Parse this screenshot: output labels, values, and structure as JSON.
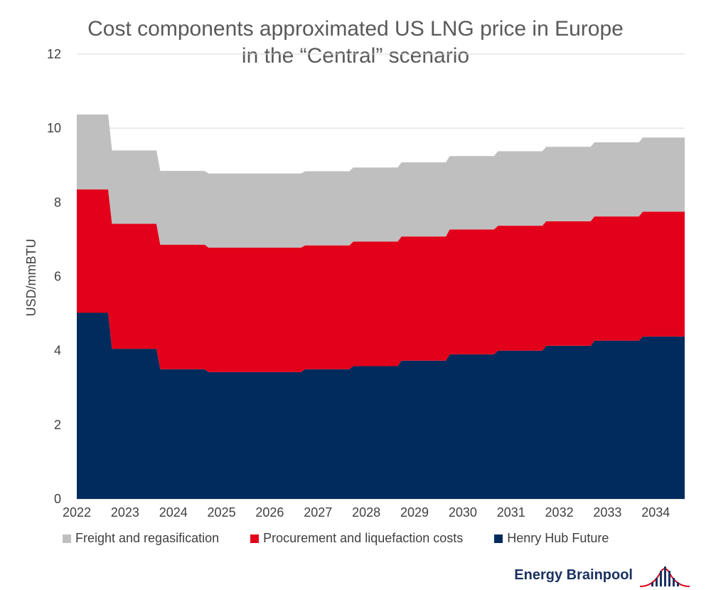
{
  "chart_data": {
    "type": "area",
    "stacked": true,
    "step": true,
    "title": [
      "Cost components approximated US LNG price in Europe",
      "in the “Central” scenario"
    ],
    "ylabel": "USD/mmBTU",
    "xlabel": "",
    "ylim": [
      0,
      12
    ],
    "yticks": [
      0,
      2,
      4,
      6,
      8,
      10,
      12
    ],
    "xlim": [
      2022,
      2034.6
    ],
    "xticks": [
      "2022",
      "2023",
      "2024",
      "2025",
      "2026",
      "2027",
      "2028",
      "2029",
      "2030",
      "2031",
      "2032",
      "2033",
      "2034"
    ],
    "grid": "horizontal",
    "legend_position": "bottom",
    "periods": [
      {
        "start": 2022.0,
        "end": 2022.65
      },
      {
        "start": 2022.73,
        "end": 2023.65
      },
      {
        "start": 2023.73,
        "end": 2024.65
      },
      {
        "start": 2024.73,
        "end": 2025.65
      },
      {
        "start": 2025.73,
        "end": 2026.65
      },
      {
        "start": 2026.73,
        "end": 2027.65
      },
      {
        "start": 2027.73,
        "end": 2028.65
      },
      {
        "start": 2028.73,
        "end": 2029.65
      },
      {
        "start": 2029.73,
        "end": 2030.65
      },
      {
        "start": 2030.73,
        "end": 2031.65
      },
      {
        "start": 2031.73,
        "end": 2032.65
      },
      {
        "start": 2032.73,
        "end": 2033.65
      },
      {
        "start": 2033.73,
        "end": 2034.6
      }
    ],
    "series": [
      {
        "name": "Henry Hub Future",
        "color": "#002b5c",
        "values": [
          5.02,
          4.05,
          3.5,
          3.42,
          3.42,
          3.5,
          3.58,
          3.73,
          3.9,
          4.0,
          4.13,
          4.27,
          4.38
        ]
      },
      {
        "name": "Procurement and liquefaction costs",
        "color": "#e2001a",
        "values": [
          3.33,
          3.37,
          3.36,
          3.36,
          3.36,
          3.34,
          3.36,
          3.35,
          3.37,
          3.37,
          3.36,
          3.35,
          3.37
        ]
      },
      {
        "name": "Freight and regasification",
        "color": "#bfbfbf",
        "values": [
          2.02,
          1.98,
          1.99,
          2.0,
          2.0,
          2.0,
          2.0,
          2.0,
          1.98,
          2.01,
          2.01,
          2.0,
          2.0
        ]
      }
    ]
  },
  "legend": [
    {
      "label": "Freight and regasification",
      "color": "#bfbfbf"
    },
    {
      "label": "Procurement and liquefaction costs",
      "color": "#e2001a"
    },
    {
      "label": "Henry Hub Future",
      "color": "#002b5c"
    }
  ],
  "brand": {
    "name": "Energy Brainpool",
    "color": "#1b3260",
    "accent": "#e2001a",
    "icon": "bar-signal-icon"
  }
}
